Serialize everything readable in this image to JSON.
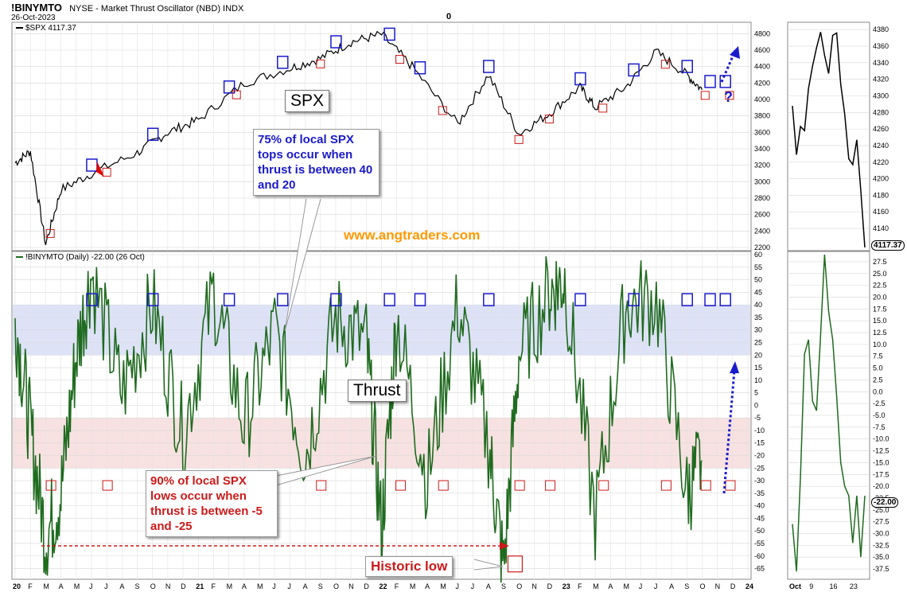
{
  "header": {
    "symbol": "!BINYMTO",
    "description": "NYSE - Market Thrust Oscillator (NBD)  INDX",
    "date": "26-Oct-2023",
    "zero_marker": "0"
  },
  "panels": {
    "spx_legend": "$SPX 4117.37",
    "osc_legend": "!BINYMTO (Daily) -22.00 (26 Oct)",
    "spx_last": "4117.37",
    "osc_last": "-22.00"
  },
  "annotations": {
    "spx_label": "SPX",
    "thrust_label": "Thrust",
    "website": "www.angtraders.com",
    "tops_callout": "75% of local SPX tops occur when thrust is between 40 and 20",
    "lows_callout": "90% of local SPX lows occur when thrust is between -5 and -25",
    "historic_low": "Historic low",
    "question": "?"
  },
  "colors": {
    "spx_line": "#000000",
    "osc_line": "#1f6b1f",
    "top_box": "#1a1acc",
    "low_box": "#cc1a1a",
    "top_band": "#dde2f7",
    "low_band": "#f7e1e1",
    "website": "#ff9900",
    "tops_text": "#1a1acc",
    "lows_text": "#cc1a1a"
  },
  "chart_data": [
    {
      "type": "line",
      "panel": "spx",
      "y_ticks": [
        2200,
        2400,
        2600,
        2800,
        3000,
        3200,
        3400,
        3600,
        3800,
        4000,
        4200,
        4400,
        4600,
        4800
      ],
      "ylim": [
        2200,
        4900
      ],
      "series": [
        {
          "x": [
            "2020-01",
            "2020-02",
            "2020-03",
            "2020-04",
            "2020-06",
            "2020-09",
            "2020-11",
            "2021-01",
            "2021-04",
            "2021-07",
            "2021-09",
            "2021-11",
            "2022-01",
            "2022-03",
            "2022-06",
            "2022-08",
            "2022-10",
            "2022-12",
            "2023-02",
            "2023-03",
            "2023-05",
            "2023-07",
            "2023-09",
            "2023-10"
          ],
          "values": [
            3230,
            3370,
            2240,
            2900,
            3100,
            3350,
            3600,
            3750,
            4200,
            4380,
            4500,
            4700,
            4790,
            4400,
            3700,
            4300,
            3580,
            3830,
            4150,
            3900,
            4150,
            4580,
            4300,
            4117
          ]
        }
      ]
    },
    {
      "type": "line",
      "panel": "thrust",
      "y_ticks": [
        60,
        55,
        50,
        45,
        40,
        35,
        30,
        25,
        20,
        15,
        10,
        5,
        0,
        -5,
        -10,
        -15,
        -20,
        -25,
        -30,
        -35,
        -40,
        -45,
        -50,
        -55,
        -60,
        -65
      ],
      "ylim": [
        -68,
        60
      ],
      "bands": [
        [
          20,
          40
        ],
        [
          -25,
          -5
        ]
      ],
      "series": [
        {
          "x": [
            "2020-01",
            "2020-02",
            "2020-03",
            "2020-04",
            "2020-05",
            "2020-06",
            "2020-08",
            "2020-10",
            "2020-12",
            "2021-02",
            "2021-04",
            "2021-06",
            "2021-08",
            "2021-10",
            "2021-12",
            "2022-01",
            "2022-02",
            "2022-04",
            "2022-06",
            "2022-08",
            "2022-09",
            "2022-10",
            "2022-12",
            "2023-01",
            "2023-03",
            "2023-05",
            "2023-07",
            "2023-09",
            "2023-10"
          ],
          "values": [
            35,
            -10,
            -53,
            -35,
            20,
            52,
            5,
            40,
            -12,
            45,
            -8,
            30,
            -20,
            35,
            25,
            -50,
            35,
            -30,
            40,
            -15,
            -65,
            20,
            45,
            50,
            -45,
            40,
            42,
            -35,
            -22
          ]
        }
      ]
    },
    {
      "type": "line",
      "panel": "spx-oct",
      "x_labels": [
        "Oct",
        "9",
        "16",
        "23"
      ],
      "y_ticks": [
        4140,
        4160,
        4180,
        4200,
        4220,
        4240,
        4260,
        4280,
        4300,
        4320,
        4340,
        4360,
        4380
      ],
      "ylim": [
        4117,
        4385
      ],
      "series": [
        {
          "x": [
            1,
            2,
            3,
            4,
            5,
            6,
            7,
            8,
            9,
            10,
            11,
            12,
            13,
            14,
            15,
            16,
            17,
            18,
            19
          ],
          "values": [
            4288,
            4229,
            4263,
            4258,
            4309,
            4336,
            4358,
            4377,
            4349,
            4327,
            4373,
            4376,
            4314,
            4278,
            4224,
            4217,
            4247,
            4186,
            4117
          ]
        }
      ]
    },
    {
      "type": "line",
      "panel": "thrust-oct",
      "y_ticks": [
        27.5,
        25.0,
        22.5,
        20.0,
        17.5,
        15.0,
        12.5,
        10.0,
        7.5,
        5.0,
        2.5,
        0.0,
        -2.5,
        -5.0,
        -7.5,
        -10.0,
        -12.5,
        -15.0,
        -17.5,
        -20.0,
        -22.5,
        -25.0,
        -27.5,
        -30.0,
        -32.5,
        -35.0,
        -37.5
      ],
      "ylim": [
        -39,
        29
      ],
      "series": [
        {
          "x": [
            1,
            2,
            3,
            4,
            5,
            6,
            7,
            8,
            9,
            10,
            11,
            12,
            13,
            14,
            15,
            16,
            17,
            18,
            19
          ],
          "values": [
            -28,
            -38,
            -18,
            8,
            11,
            -2,
            -4,
            12,
            29,
            17,
            11,
            -1,
            -15,
            -20,
            -22,
            -32,
            -22,
            -35,
            -22
          ]
        }
      ]
    }
  ],
  "x_axis": {
    "main": [
      "20",
      "F",
      "M",
      "A",
      "M",
      "J",
      "J",
      "A",
      "S",
      "O",
      "N",
      "D",
      "21",
      "F",
      "M",
      "A",
      "M",
      "J",
      "J",
      "A",
      "S",
      "O",
      "N",
      "D",
      "22",
      "F",
      "M",
      "A",
      "M",
      "J",
      "J",
      "A",
      "S",
      "O",
      "N",
      "D",
      "23",
      "F",
      "M",
      "A",
      "M",
      "J",
      "J",
      "A",
      "S",
      "O",
      "N",
      "D",
      "24"
    ],
    "small": [
      "Oct",
      "9",
      "16",
      "23"
    ]
  }
}
